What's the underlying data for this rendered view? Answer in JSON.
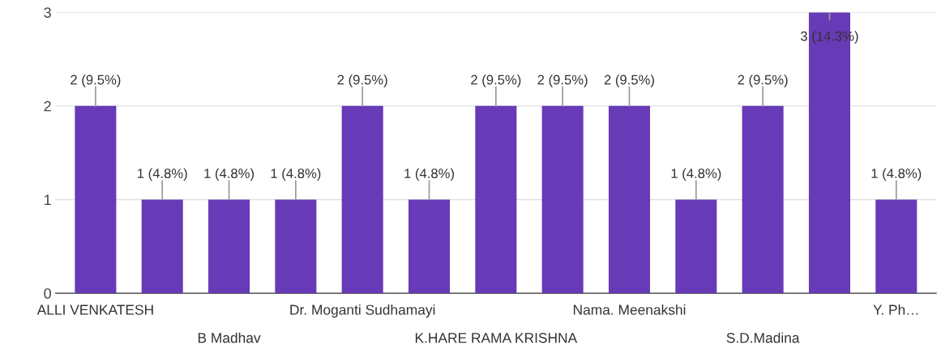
{
  "chart_data": {
    "type": "bar",
    "categories": [
      "ALLI VENKATESH",
      null,
      "B Madhav",
      null,
      "Dr. Moganti Sudhamayi",
      null,
      "K.HARE RAMA KRISHNA",
      null,
      "Nama. Meenakshi",
      null,
      "S.D.Madina",
      null,
      "Y. Ph…"
    ],
    "values": [
      2,
      1,
      1,
      1,
      2,
      1,
      2,
      2,
      2,
      1,
      2,
      3,
      1
    ],
    "value_labels": [
      "2 (9.5%)",
      "1 (4.8%)",
      "1 (4.8%)",
      "1 (4.8%)",
      "2 (9.5%)",
      "1 (4.8%)",
      "2 (9.5%)",
      "2 (9.5%)",
      "2 (9.5%)",
      "1 (4.8%)",
      "2 (9.5%)",
      "3 (14.3%)",
      "1 (4.8%)"
    ],
    "color": "#673ab7",
    "ylim": [
      0,
      3
    ],
    "yticks": [
      0,
      1,
      2,
      3
    ],
    "grid": "y"
  }
}
